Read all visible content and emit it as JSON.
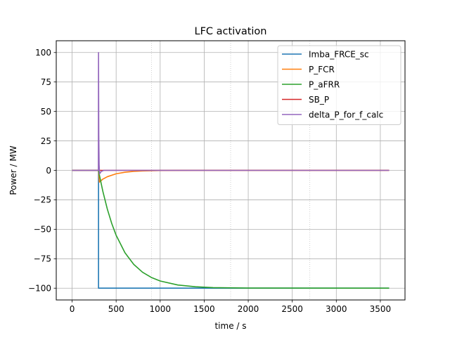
{
  "chart_data": {
    "type": "line",
    "title": "LFC activation",
    "xlabel": "time / s",
    "ylabel": "Power / MW",
    "xlim": [
      -180,
      3780
    ],
    "ylim": [
      -110,
      110
    ],
    "xticks": [
      0,
      500,
      1000,
      1500,
      2000,
      2500,
      3000,
      3500
    ],
    "yticks": [
      -100,
      -75,
      -50,
      -25,
      0,
      25,
      50,
      75,
      100
    ],
    "xtick_labels": [
      "0",
      "500",
      "1000",
      "1500",
      "2000",
      "2500",
      "3000",
      "3500"
    ],
    "ytick_labels": [
      "−100",
      "−75",
      "−50",
      "−25",
      "0",
      "25",
      "50",
      "75",
      "100"
    ],
    "grid": true,
    "minor_vertical_gridlines": [
      900,
      1800,
      2700
    ],
    "legend_position": "upper right",
    "series": [
      {
        "name": "Imba_FRCE_sc",
        "color": "#1f77b4",
        "points": [
          [
            0,
            0
          ],
          [
            300,
            0
          ],
          [
            300,
            -100
          ],
          [
            3600,
            -100
          ]
        ]
      },
      {
        "name": "P_FCR",
        "color": "#ff7f0e",
        "points": [
          [
            0,
            0
          ],
          [
            300,
            0
          ],
          [
            310,
            -10
          ],
          [
            350,
            -7.4
          ],
          [
            400,
            -5.4
          ],
          [
            500,
            -2.9
          ],
          [
            600,
            -1.6
          ],
          [
            700,
            -0.9
          ],
          [
            800,
            -0.5
          ],
          [
            1000,
            -0.1
          ],
          [
            1500,
            0
          ],
          [
            3600,
            0
          ]
        ]
      },
      {
        "name": "P_aFRR",
        "color": "#2ca02c",
        "points": [
          [
            0,
            0
          ],
          [
            300,
            0
          ],
          [
            310,
            -4
          ],
          [
            350,
            -18.1
          ],
          [
            400,
            -32.9
          ],
          [
            450,
            -45.1
          ],
          [
            500,
            -55.1
          ],
          [
            600,
            -69.9
          ],
          [
            700,
            -79.8
          ],
          [
            800,
            -86.5
          ],
          [
            900,
            -90.9
          ],
          [
            1000,
            -93.9
          ],
          [
            1200,
            -97.3
          ],
          [
            1400,
            -98.8
          ],
          [
            1600,
            -99.5
          ],
          [
            2000,
            -99.9
          ],
          [
            3600,
            -100
          ]
        ]
      },
      {
        "name": "SB_P",
        "color": "#d62728",
        "points": [
          [
            0,
            0
          ],
          [
            3600,
            0
          ]
        ]
      },
      {
        "name": "delta_P_for_f_calc",
        "color": "#9467bd",
        "points": [
          [
            0,
            0
          ],
          [
            298,
            0
          ],
          [
            300,
            100
          ],
          [
            303,
            30
          ],
          [
            307,
            5
          ],
          [
            312,
            -3
          ],
          [
            330,
            -1
          ],
          [
            360,
            0
          ],
          [
            3600,
            0
          ]
        ]
      }
    ]
  }
}
